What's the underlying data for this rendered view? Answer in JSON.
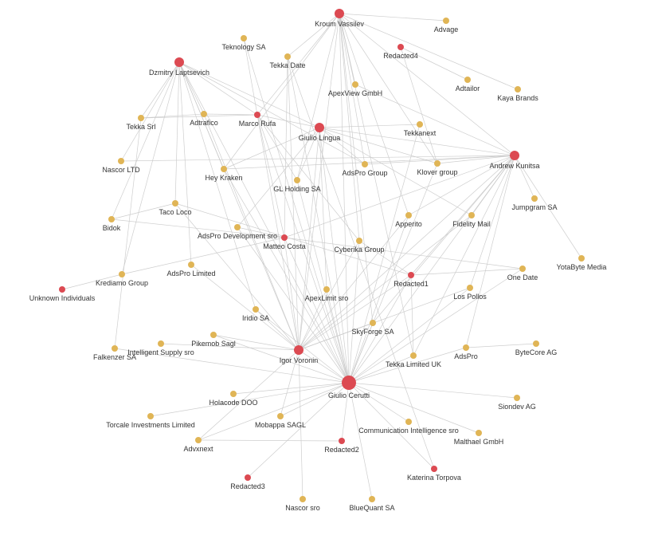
{
  "colors": {
    "person": "#dc4a52",
    "company": "#e0b556",
    "edge": "#c9c9c9"
  },
  "nodes": [
    {
      "name": "Kroum Vassilev",
      "type": "person",
      "size": "large"
    },
    {
      "name": "Dzmitry Laptsevich",
      "type": "person",
      "size": "large"
    },
    {
      "name": "Marco Rufa",
      "type": "person",
      "size": "small"
    },
    {
      "name": "Giulio Lingua",
      "type": "person",
      "size": "large"
    },
    {
      "name": "Andrew Kunitsa",
      "type": "person",
      "size": "large"
    },
    {
      "name": "Redacted4",
      "type": "person",
      "size": "small"
    },
    {
      "name": "Matteo Costa",
      "type": "person",
      "size": "small"
    },
    {
      "name": "Unknown Individuals",
      "type": "person",
      "size": "small"
    },
    {
      "name": "Redacted1",
      "type": "person",
      "size": "small"
    },
    {
      "name": "Igor Voronin",
      "type": "person",
      "size": "large"
    },
    {
      "name": "Giulio Cerutti",
      "type": "person",
      "size": "xlarge"
    },
    {
      "name": "Redacted2",
      "type": "person",
      "size": "small"
    },
    {
      "name": "Redacted3",
      "type": "person",
      "size": "small"
    },
    {
      "name": "Katerina Torpova",
      "type": "person",
      "size": "small"
    },
    {
      "name": "Teknology SA",
      "type": "company"
    },
    {
      "name": "Tekka Date",
      "type": "company"
    },
    {
      "name": "Advage",
      "type": "company"
    },
    {
      "name": "ApexView GmbH",
      "type": "company"
    },
    {
      "name": "Adtailor",
      "type": "company"
    },
    {
      "name": "Kaya Brands",
      "type": "company"
    },
    {
      "name": "Tekka Srl",
      "type": "company"
    },
    {
      "name": "Adtrafico",
      "type": "company"
    },
    {
      "name": "Tekkanext",
      "type": "company"
    },
    {
      "name": "Nascor LTD",
      "type": "company"
    },
    {
      "name": "Hey Kraken",
      "type": "company"
    },
    {
      "name": "GL Holding SA",
      "type": "company"
    },
    {
      "name": "AdsPro Group",
      "type": "company"
    },
    {
      "name": "Klover group",
      "type": "company"
    },
    {
      "name": "Jumpgram SA",
      "type": "company"
    },
    {
      "name": "Taco Loco",
      "type": "company"
    },
    {
      "name": "Bidok",
      "type": "company"
    },
    {
      "name": "AdsPro Development sro",
      "type": "company"
    },
    {
      "name": "Apperito",
      "type": "company"
    },
    {
      "name": "Fidelity Mail",
      "type": "company"
    },
    {
      "name": "Cyberika Group",
      "type": "company"
    },
    {
      "name": "YotaByte Media",
      "type": "company"
    },
    {
      "name": "One Date",
      "type": "company"
    },
    {
      "name": "AdsPro Limited",
      "type": "company"
    },
    {
      "name": "Krediamo Group",
      "type": "company"
    },
    {
      "name": "ApexLimit sro",
      "type": "company"
    },
    {
      "name": "Los Pollos",
      "type": "company"
    },
    {
      "name": "Iridio SA",
      "type": "company"
    },
    {
      "name": "SkyForge SA",
      "type": "company"
    },
    {
      "name": "Pikemob Sagl",
      "type": "company"
    },
    {
      "name": "Intelligent Supply sro",
      "type": "company"
    },
    {
      "name": "Falkenzer SA",
      "type": "company"
    },
    {
      "name": "AdsPro",
      "type": "company"
    },
    {
      "name": "ByteCore AG",
      "type": "company"
    },
    {
      "name": "Tekka Limited UK",
      "type": "company"
    },
    {
      "name": "Holacode DOO",
      "type": "company"
    },
    {
      "name": "Siondev AG",
      "type": "company"
    },
    {
      "name": "Torcale Investments Limited",
      "type": "company"
    },
    {
      "name": "Mobappa SAGL",
      "type": "company"
    },
    {
      "name": "Communication Intelligence sro",
      "type": "company"
    },
    {
      "name": "Malthael GmbH",
      "type": "company"
    },
    {
      "name": "Advxnext",
      "type": "company"
    },
    {
      "name": "Nascor sro",
      "type": "company"
    },
    {
      "name": "BlueQuant SA",
      "type": "company"
    }
  ],
  "edges": [
    [
      "Kroum Vassilev",
      "Advage"
    ],
    [
      "Kroum Vassilev",
      "Kaya Brands"
    ],
    [
      "Kroum Vassilev",
      "Tekka Date"
    ],
    [
      "Kroum Vassilev",
      "ApexView GmbH"
    ],
    [
      "Kroum Vassilev",
      "Giulio Cerutti"
    ],
    [
      "Kroum Vassilev",
      "Igor Voronin"
    ],
    [
      "Kroum Vassilev",
      "AdsPro Group"
    ],
    [
      "Kroum Vassilev",
      "Klover group"
    ],
    [
      "Kroum Vassilev",
      "Hey Kraken"
    ],
    [
      "Kroum Vassilev",
      "GL Holding SA"
    ],
    [
      "Kroum Vassilev",
      "Andrew Kunitsa"
    ],
    [
      "Kroum Vassilev",
      "Cyberika Group"
    ],
    [
      "Kroum Vassilev",
      "Apperito"
    ],
    [
      "Kroum Vassilev",
      "Tekka Limited UK"
    ],
    [
      "Kroum Vassilev",
      "SkyForge SA"
    ],
    [
      "Redacted4",
      "Adtailor"
    ],
    [
      "Redacted4",
      "Klover group"
    ],
    [
      "Dzmitry Laptsevich",
      "Tekka Srl"
    ],
    [
      "Dzmitry Laptsevich",
      "Adtrafico"
    ],
    [
      "Dzmitry Laptsevich",
      "Marco Rufa"
    ],
    [
      "Dzmitry Laptsevich",
      "Giulio Lingua"
    ],
    [
      "Dzmitry Laptsevich",
      "Nascor LTD"
    ],
    [
      "Dzmitry Laptsevich",
      "Hey Kraken"
    ],
    [
      "Dzmitry Laptsevich",
      "Taco Loco"
    ],
    [
      "Dzmitry Laptsevich",
      "Bidok"
    ],
    [
      "Dzmitry Laptsevich",
      "AdsPro Limited"
    ],
    [
      "Dzmitry Laptsevich",
      "Igor Voronin"
    ],
    [
      "Dzmitry Laptsevich",
      "Giulio Cerutti"
    ],
    [
      "Dzmitry Laptsevich",
      "AdsPro Group"
    ],
    [
      "Dzmitry Laptsevich",
      "Iridio SA"
    ],
    [
      "Dzmitry Laptsevich",
      "Krediamo Group"
    ],
    [
      "Marco Rufa",
      "Tekka Srl"
    ],
    [
      "Marco Rufa",
      "Adtrafico"
    ],
    [
      "Marco Rufa",
      "Giulio Lingua"
    ],
    [
      "Marco Rufa",
      "Kroum Vassilev"
    ],
    [
      "Marco Rufa",
      "GL Holding SA"
    ],
    [
      "Marco Rufa",
      "Igor Voronin"
    ],
    [
      "Marco Rufa",
      "Giulio Cerutti"
    ],
    [
      "Marco Rufa",
      "Cyberika Group"
    ],
    [
      "Marco Rufa",
      "Matteo Costa"
    ],
    [
      "Marco Rufa",
      "Teknology SA"
    ],
    [
      "Giulio Lingua",
      "Tekkanext"
    ],
    [
      "Giulio Lingua",
      "Andrew Kunitsa"
    ],
    [
      "Giulio Lingua",
      "AdsPro Group"
    ],
    [
      "Giulio Lingua",
      "Klover group"
    ],
    [
      "Giulio Lingua",
      "GL Holding SA"
    ],
    [
      "Giulio Lingua",
      "Hey Kraken"
    ],
    [
      "Giulio Lingua",
      "Igor Voronin"
    ],
    [
      "Giulio Lingua",
      "Giulio Cerutti"
    ],
    [
      "Giulio Lingua",
      "ApexLimit sro"
    ],
    [
      "Giulio Lingua",
      "AdsPro Development sro"
    ],
    [
      "Giulio Lingua",
      "Fidelity Mail"
    ],
    [
      "Andrew Kunitsa",
      "ApexView GmbH"
    ],
    [
      "Andrew Kunitsa",
      "Jumpgram SA"
    ],
    [
      "Andrew Kunitsa",
      "YotaByte Media"
    ],
    [
      "Andrew Kunitsa",
      "AdsPro Group"
    ],
    [
      "Andrew Kunitsa",
      "Klover group"
    ],
    [
      "Andrew Kunitsa",
      "Hey Kraken"
    ],
    [
      "Andrew Kunitsa",
      "Nascor LTD"
    ],
    [
      "Andrew Kunitsa",
      "Apperito"
    ],
    [
      "Andrew Kunitsa",
      "Fidelity Mail"
    ],
    [
      "Andrew Kunitsa",
      "Los Pollos"
    ],
    [
      "Andrew Kunitsa",
      "AdsPro"
    ],
    [
      "Andrew Kunitsa",
      "Igor Voronin"
    ],
    [
      "Andrew Kunitsa",
      "Giulio Cerutti"
    ],
    [
      "Andrew Kunitsa",
      "SkyForge SA"
    ],
    [
      "Andrew Kunitsa",
      "Redacted1"
    ],
    [
      "Andrew Kunitsa",
      "Matteo Costa"
    ],
    [
      "Andrew Kunitsa",
      "Tekka Limited UK"
    ],
    [
      "Matteo Costa",
      "Bidok"
    ],
    [
      "Matteo Costa",
      "Krediamo Group"
    ],
    [
      "Matteo Costa",
      "AdsPro Development sro"
    ],
    [
      "Matteo Costa",
      "One Date"
    ],
    [
      "Matteo Costa",
      "Giulio Cerutti"
    ],
    [
      "Matteo Costa",
      "Igor Voronin"
    ],
    [
      "Matteo Costa",
      "Tekka Date"
    ],
    [
      "Redacted1",
      "One Date"
    ],
    [
      "Redacted1",
      "Cyberika Group"
    ],
    [
      "Redacted1",
      "Tekka Limited UK"
    ],
    [
      "Redacted1",
      "Igor Voronin"
    ],
    [
      "Redacted1",
      "Giulio Cerutti"
    ],
    [
      "Redacted1",
      "Taco Loco"
    ],
    [
      "Igor Voronin",
      "Giulio Cerutti"
    ],
    [
      "Igor Voronin",
      "Pikemob Sagl"
    ],
    [
      "Igor Voronin",
      "Intelligent Supply sro"
    ],
    [
      "Igor Voronin",
      "Iridio SA"
    ],
    [
      "Igor Voronin",
      "AdsPro Limited"
    ],
    [
      "Igor Voronin",
      "Mobappa SAGL"
    ],
    [
      "Igor Voronin",
      "Nascor sro"
    ],
    [
      "Igor Voronin",
      "Advxnext"
    ],
    [
      "Igor Voronin",
      "SkyForge SA"
    ],
    [
      "Igor Voronin",
      "ApexLimit sro"
    ],
    [
      "Igor Voronin",
      "Cyberika Group"
    ],
    [
      "Igor Voronin",
      "Apperito"
    ],
    [
      "Igor Voronin",
      "Fidelity Mail"
    ],
    [
      "Igor Voronin",
      "Tekka Date"
    ],
    [
      "Igor Voronin",
      "Adtrafico"
    ],
    [
      "Igor Voronin",
      "Taco Loco"
    ],
    [
      "Igor Voronin",
      "Los Pollos"
    ],
    [
      "Giulio Cerutti",
      "Falkenzer SA"
    ],
    [
      "Giulio Cerutti",
      "Holacode DOO"
    ],
    [
      "Giulio Cerutti",
      "Torcale Investments Limited"
    ],
    [
      "Giulio Cerutti",
      "Advxnext"
    ],
    [
      "Giulio Cerutti",
      "Redacted2"
    ],
    [
      "Giulio Cerutti",
      "Redacted3"
    ],
    [
      "Giulio Cerutti",
      "BlueQuant SA"
    ],
    [
      "Giulio Cerutti",
      "Katerina Torpova"
    ],
    [
      "Giulio Cerutti",
      "Communication Intelligence sro"
    ],
    [
      "Giulio Cerutti",
      "Malthael GmbH"
    ],
    [
      "Giulio Cerutti",
      "Siondev AG"
    ],
    [
      "Giulio Cerutti",
      "AdsPro"
    ],
    [
      "Giulio Cerutti",
      "Tekka Limited UK"
    ],
    [
      "Giulio Cerutti",
      "SkyForge SA"
    ],
    [
      "Giulio Cerutti",
      "ApexLimit sro"
    ],
    [
      "Giulio Cerutti",
      "Iridio SA"
    ],
    [
      "Giulio Cerutti",
      "Pikemob Sagl"
    ],
    [
      "Giulio Cerutti",
      "AdsPro Development sro"
    ],
    [
      "Giulio Cerutti",
      "Tekkanext"
    ],
    [
      "Giulio Cerutti",
      "Klover group"
    ],
    [
      "Giulio Cerutti",
      "One Date"
    ],
    [
      "Giulio Cerutti",
      "Los Pollos"
    ],
    [
      "Giulio Cerutti",
      "Apperito"
    ],
    [
      "Giulio Cerutti",
      "Cyberika Group"
    ],
    [
      "Giulio Cerutti",
      "Mobappa SAGL"
    ],
    [
      "Giulio Cerutti",
      "Hey Kraken"
    ],
    [
      "Giulio Cerutti",
      "GL Holding SA"
    ],
    [
      "Giulio Cerutti",
      "Teknology SA"
    ],
    [
      "Giulio Cerutti",
      "Tekka Date"
    ],
    [
      "Advxnext",
      "Redacted2"
    ],
    [
      "AdsPro",
      "ByteCore AG"
    ],
    [
      "Unknown Individuals",
      "Krediamo Group"
    ],
    [
      "Falkenzer SA",
      "Tekka Srl"
    ],
    [
      "Katerina Torpova",
      "Tekka Date"
    ],
    [
      "Tekka Srl",
      "Adtrafico"
    ],
    [
      "Bidok",
      "Taco Loco"
    ]
  ]
}
